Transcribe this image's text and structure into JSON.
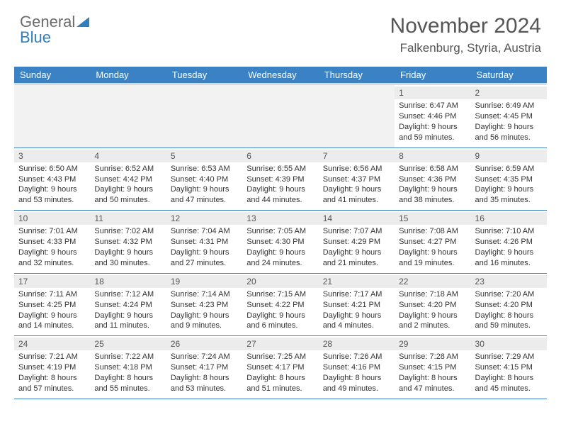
{
  "logo": {
    "text_general": "General",
    "text_blue": "Blue"
  },
  "title": "November 2024",
  "location": "Falkenburg, Styria, Austria",
  "colors": {
    "header_bg": "#3b82c4",
    "header_text": "#ffffff",
    "row_divider": "#3b82c4",
    "daynum_bg": "#ececec",
    "body_text": "#333333",
    "title_text": "#555555"
  },
  "weekdays": [
    "Sunday",
    "Monday",
    "Tuesday",
    "Wednesday",
    "Thursday",
    "Friday",
    "Saturday"
  ],
  "weeks": [
    [
      null,
      null,
      null,
      null,
      null,
      {
        "n": "1",
        "sr": "Sunrise: 6:47 AM",
        "ss": "Sunset: 4:46 PM",
        "d1": "Daylight: 9 hours",
        "d2": "and 59 minutes."
      },
      {
        "n": "2",
        "sr": "Sunrise: 6:49 AM",
        "ss": "Sunset: 4:45 PM",
        "d1": "Daylight: 9 hours",
        "d2": "and 56 minutes."
      }
    ],
    [
      {
        "n": "3",
        "sr": "Sunrise: 6:50 AM",
        "ss": "Sunset: 4:43 PM",
        "d1": "Daylight: 9 hours",
        "d2": "and 53 minutes."
      },
      {
        "n": "4",
        "sr": "Sunrise: 6:52 AM",
        "ss": "Sunset: 4:42 PM",
        "d1": "Daylight: 9 hours",
        "d2": "and 50 minutes."
      },
      {
        "n": "5",
        "sr": "Sunrise: 6:53 AM",
        "ss": "Sunset: 4:40 PM",
        "d1": "Daylight: 9 hours",
        "d2": "and 47 minutes."
      },
      {
        "n": "6",
        "sr": "Sunrise: 6:55 AM",
        "ss": "Sunset: 4:39 PM",
        "d1": "Daylight: 9 hours",
        "d2": "and 44 minutes."
      },
      {
        "n": "7",
        "sr": "Sunrise: 6:56 AM",
        "ss": "Sunset: 4:37 PM",
        "d1": "Daylight: 9 hours",
        "d2": "and 41 minutes."
      },
      {
        "n": "8",
        "sr": "Sunrise: 6:58 AM",
        "ss": "Sunset: 4:36 PM",
        "d1": "Daylight: 9 hours",
        "d2": "and 38 minutes."
      },
      {
        "n": "9",
        "sr": "Sunrise: 6:59 AM",
        "ss": "Sunset: 4:35 PM",
        "d1": "Daylight: 9 hours",
        "d2": "and 35 minutes."
      }
    ],
    [
      {
        "n": "10",
        "sr": "Sunrise: 7:01 AM",
        "ss": "Sunset: 4:33 PM",
        "d1": "Daylight: 9 hours",
        "d2": "and 32 minutes."
      },
      {
        "n": "11",
        "sr": "Sunrise: 7:02 AM",
        "ss": "Sunset: 4:32 PM",
        "d1": "Daylight: 9 hours",
        "d2": "and 30 minutes."
      },
      {
        "n": "12",
        "sr": "Sunrise: 7:04 AM",
        "ss": "Sunset: 4:31 PM",
        "d1": "Daylight: 9 hours",
        "d2": "and 27 minutes."
      },
      {
        "n": "13",
        "sr": "Sunrise: 7:05 AM",
        "ss": "Sunset: 4:30 PM",
        "d1": "Daylight: 9 hours",
        "d2": "and 24 minutes."
      },
      {
        "n": "14",
        "sr": "Sunrise: 7:07 AM",
        "ss": "Sunset: 4:29 PM",
        "d1": "Daylight: 9 hours",
        "d2": "and 21 minutes."
      },
      {
        "n": "15",
        "sr": "Sunrise: 7:08 AM",
        "ss": "Sunset: 4:27 PM",
        "d1": "Daylight: 9 hours",
        "d2": "and 19 minutes."
      },
      {
        "n": "16",
        "sr": "Sunrise: 7:10 AM",
        "ss": "Sunset: 4:26 PM",
        "d1": "Daylight: 9 hours",
        "d2": "and 16 minutes."
      }
    ],
    [
      {
        "n": "17",
        "sr": "Sunrise: 7:11 AM",
        "ss": "Sunset: 4:25 PM",
        "d1": "Daylight: 9 hours",
        "d2": "and 14 minutes."
      },
      {
        "n": "18",
        "sr": "Sunrise: 7:12 AM",
        "ss": "Sunset: 4:24 PM",
        "d1": "Daylight: 9 hours",
        "d2": "and 11 minutes."
      },
      {
        "n": "19",
        "sr": "Sunrise: 7:14 AM",
        "ss": "Sunset: 4:23 PM",
        "d1": "Daylight: 9 hours",
        "d2": "and 9 minutes."
      },
      {
        "n": "20",
        "sr": "Sunrise: 7:15 AM",
        "ss": "Sunset: 4:22 PM",
        "d1": "Daylight: 9 hours",
        "d2": "and 6 minutes."
      },
      {
        "n": "21",
        "sr": "Sunrise: 7:17 AM",
        "ss": "Sunset: 4:21 PM",
        "d1": "Daylight: 9 hours",
        "d2": "and 4 minutes."
      },
      {
        "n": "22",
        "sr": "Sunrise: 7:18 AM",
        "ss": "Sunset: 4:20 PM",
        "d1": "Daylight: 9 hours",
        "d2": "and 2 minutes."
      },
      {
        "n": "23",
        "sr": "Sunrise: 7:20 AM",
        "ss": "Sunset: 4:20 PM",
        "d1": "Daylight: 8 hours",
        "d2": "and 59 minutes."
      }
    ],
    [
      {
        "n": "24",
        "sr": "Sunrise: 7:21 AM",
        "ss": "Sunset: 4:19 PM",
        "d1": "Daylight: 8 hours",
        "d2": "and 57 minutes."
      },
      {
        "n": "25",
        "sr": "Sunrise: 7:22 AM",
        "ss": "Sunset: 4:18 PM",
        "d1": "Daylight: 8 hours",
        "d2": "and 55 minutes."
      },
      {
        "n": "26",
        "sr": "Sunrise: 7:24 AM",
        "ss": "Sunset: 4:17 PM",
        "d1": "Daylight: 8 hours",
        "d2": "and 53 minutes."
      },
      {
        "n": "27",
        "sr": "Sunrise: 7:25 AM",
        "ss": "Sunset: 4:17 PM",
        "d1": "Daylight: 8 hours",
        "d2": "and 51 minutes."
      },
      {
        "n": "28",
        "sr": "Sunrise: 7:26 AM",
        "ss": "Sunset: 4:16 PM",
        "d1": "Daylight: 8 hours",
        "d2": "and 49 minutes."
      },
      {
        "n": "29",
        "sr": "Sunrise: 7:28 AM",
        "ss": "Sunset: 4:15 PM",
        "d1": "Daylight: 8 hours",
        "d2": "and 47 minutes."
      },
      {
        "n": "30",
        "sr": "Sunrise: 7:29 AM",
        "ss": "Sunset: 4:15 PM",
        "d1": "Daylight: 8 hours",
        "d2": "and 45 minutes."
      }
    ]
  ]
}
